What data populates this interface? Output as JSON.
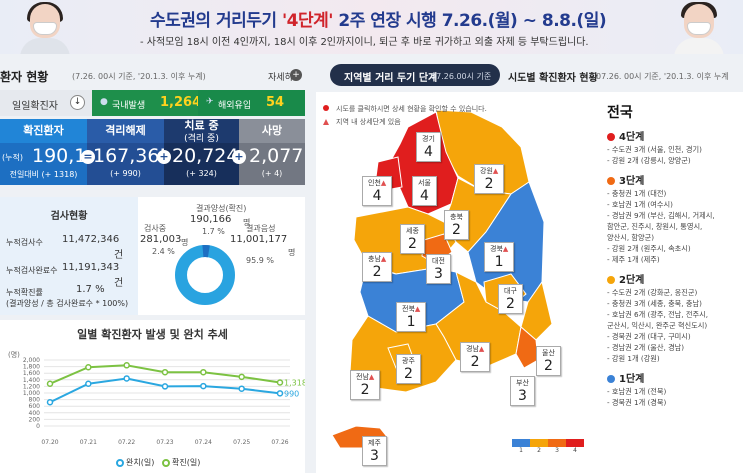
{
  "banner": {
    "title_a": "수도권의 거리두기 ",
    "title_b": "'4단계'",
    "title_c": " 2주 연장 시행 7.26.(월) ~ 8.8.(일)",
    "subtitle": "- 사적모임 18시 이전 4인까지, 18시 이후 2인까지이니, 퇴근 후 바로 귀가하고 외출 자제 등 부탁드립니다."
  },
  "status": {
    "title": "환자 현황",
    "date": "(7.26. 00시 기준, '20.1.3. 이후 누계)",
    "more_label": "자세히",
    "more_icon": "+",
    "daily_label": "일일확진자",
    "daily_icon": "↓",
    "domestic_icon": "●",
    "domestic_label": "국내발생",
    "domestic_value": "1,264",
    "imported_icon": "✈",
    "imported_label": "해외유입",
    "imported_value": "54"
  },
  "totals": {
    "confirmed": {
      "label": "확진환자",
      "prefix": "(누적)",
      "value": "190,166",
      "delta": "전일대비 (+ 1318)"
    },
    "released": {
      "label": "격리해제",
      "value": "167,365",
      "delta": "(+ 990)"
    },
    "treating": {
      "label": "치료 중",
      "label2": "(격리 중)",
      "value": "20,724",
      "delta": "(+ 324)"
    },
    "deaths": {
      "label": "사망",
      "value": "2,077",
      "delta": "(+ 4)"
    },
    "eq_sign": "=",
    "plus_sign": "+"
  },
  "tests": {
    "title": "검사현황",
    "rows": [
      {
        "label": "누적검사수",
        "value": "11,472,346",
        "unit": "건"
      },
      {
        "label": "누적검사완료수",
        "value": "11,191,343",
        "unit": "건"
      },
      {
        "label": "누적확진률",
        "value": "1.7 %",
        "unit": ""
      }
    ],
    "note": "(결과양성 / 총 검사완료수 * 100%)",
    "testing_label": "검사중",
    "testing_value": "281,003",
    "testing_unit": "명",
    "testing_pct": "2.4 %",
    "positive_label": "결과양성(확진)",
    "positive_value": "190,166",
    "positive_unit": "명",
    "positive_pct": "1.7 %",
    "negative_label": "결과음성",
    "negative_value": "11,001,177",
    "negative_unit": "명",
    "negative_pct": "95.9 %"
  },
  "chart_data": {
    "type": "line",
    "title": "일별 확진환자 발생 및 완치 추세",
    "unit_label": "(명)",
    "categories": [
      "07.20",
      "07.21",
      "07.22",
      "07.23",
      "07.24",
      "07.25",
      "07.26"
    ],
    "y_ticks": [
      "2,000",
      "1,800",
      "1,600",
      "1,400",
      "1,200",
      "1,000",
      "800",
      "600",
      "400",
      "200",
      "0"
    ],
    "ylim": [
      0,
      2000
    ],
    "grid": true,
    "series": [
      {
        "name": "완치(일)",
        "color": "#2aa7e0",
        "values": [
          720,
          1280,
          1440,
          1200,
          1210,
          1130,
          990
        ],
        "end_label": "990"
      },
      {
        "name": "확진(일)",
        "color": "#7cc242",
        "values": [
          1280,
          1780,
          1840,
          1630,
          1630,
          1490,
          1318
        ],
        "end_label": "1,318"
      }
    ]
  },
  "map": {
    "tab_active": "지역별 거리 두기 단계",
    "tab_active_date": "07.26.00시 기준",
    "tab_other": "시도별 확진환자 현황",
    "tab_other_date": "07.26. 00시 기준, '20.1.3. 이후 누계",
    "note1": "시도를 클릭하시면 상세 현황을 확인할 수 있습니다.",
    "note2": "지역 내 상세단계 있음",
    "level_colors": {
      "1": "#3b82d6",
      "2": "#f5a50a",
      "3": "#f06a14",
      "4": "#e01e1e"
    },
    "regions": [
      {
        "name": "경기",
        "level": "4",
        "warn": false
      },
      {
        "name": "강원",
        "level": "2",
        "warn": true
      },
      {
        "name": "인천",
        "level": "4",
        "warn": true
      },
      {
        "name": "서울",
        "level": "4",
        "warn": false
      },
      {
        "name": "충북",
        "level": "2",
        "warn": false
      },
      {
        "name": "세종",
        "level": "2",
        "warn": false
      },
      {
        "name": "충남",
        "level": "2",
        "warn": true
      },
      {
        "name": "대전",
        "level": "3",
        "warn": false
      },
      {
        "name": "경북",
        "level": "1",
        "warn": true
      },
      {
        "name": "대구",
        "level": "2",
        "warn": false
      },
      {
        "name": "전북",
        "level": "1",
        "warn": true
      },
      {
        "name": "광주",
        "level": "2",
        "warn": false
      },
      {
        "name": "경남",
        "level": "2",
        "warn": true
      },
      {
        "name": "울산",
        "level": "2",
        "warn": false
      },
      {
        "name": "전남",
        "level": "2",
        "warn": true
      },
      {
        "name": "부산",
        "level": "3",
        "warn": false
      },
      {
        "name": "제주",
        "level": "3",
        "warn": false
      }
    ],
    "scale_labels": [
      "1",
      "2",
      "3",
      "4"
    ],
    "warn_icon": "▲"
  },
  "levels": {
    "title": "전국",
    "groups": [
      {
        "label": "4단계",
        "color": "#e01e1e",
        "items": [
          "- 수도권 3개 (서울, 인천, 경기)",
          "- 강원 2개 (강릉시, 양양군)"
        ]
      },
      {
        "label": "3단계",
        "color": "#f06a14",
        "items": [
          "- 충청권 1개 (대전)",
          "- 호남권 1개 (여수시)",
          "- 경남권 9개 (부산, 김해시, 거제시,",
          "  함안군, 진주시, 창원시, 통영시,",
          "  양산시, 함양군)",
          "- 강원 2개 (원주시, 속초시)",
          "- 제주 1개 (제주)"
        ]
      },
      {
        "label": "2단계",
        "color": "#f5a50a",
        "items": [
          "- 수도권 2개 (강화군, 옹진군)",
          "- 충청권 3개 (세종, 충북, 충남)",
          "- 호남권 6개 (광주, 전남, 전주시,",
          "  군산시, 익산시, 완주군 혁신도시)",
          "- 경북권 2개 (대구, 구미시)",
          "- 경남권 2개 (울산, 경남)",
          "- 강원 1개 (강원)"
        ]
      },
      {
        "label": "1단계",
        "color": "#3b82d6",
        "items": [
          "- 호남권 1개 (전북)",
          "- 경북권 1개 (경북)"
        ]
      }
    ]
  }
}
